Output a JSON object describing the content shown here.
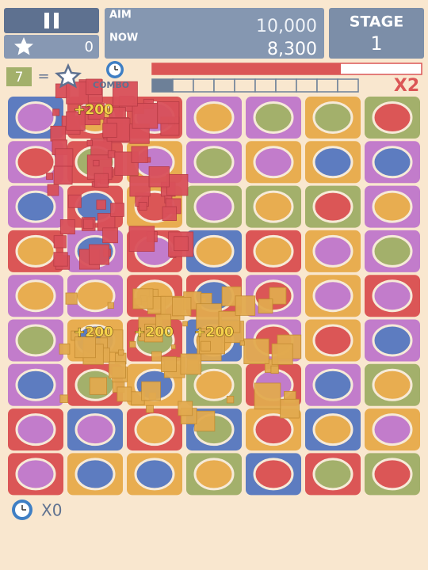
{
  "header": {
    "stars": "0",
    "aim_label": "AIM",
    "aim": "10,000",
    "now_label": "NOW",
    "now": "8,300",
    "stage_label": "STAGE",
    "stage": "1"
  },
  "bar": {
    "count": "7",
    "equals": "=",
    "combo_label": "COMBO",
    "multiplier": "X2"
  },
  "effects": {
    "popups": [
      "+200",
      "+200",
      "+200",
      "+200"
    ]
  },
  "footer": {
    "clocks": "X0"
  }
}
